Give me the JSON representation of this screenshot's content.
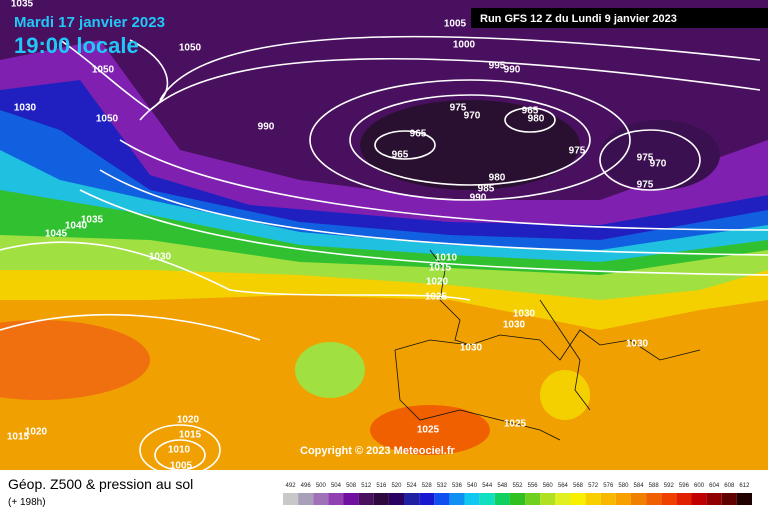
{
  "map": {
    "date": "Mardi 17 janvier 2023",
    "time": "19:00 locale",
    "run": "Run GFS 12 Z du Lundi 9 janvier 2023",
    "copyright": "Copyright © 2023 Meteociel.fr",
    "product": "Géop. Z500 & pression au sol",
    "lead_time": "(+ 198h)",
    "isobar_labels": [
      "1035",
      "1050",
      "1050",
      "1030",
      "1050",
      "1005",
      "1000",
      "995",
      "990",
      "990",
      "975",
      "970",
      "965",
      "980",
      "965",
      "965",
      "975",
      "975",
      "970",
      "975",
      "980",
      "985",
      "990",
      "1035",
      "1040",
      "1045",
      "1030",
      "1010",
      "1015",
      "1020",
      "1025",
      "1030",
      "1030",
      "1030",
      "1030",
      "1025",
      "1025",
      "1020",
      "1015",
      "1010",
      "1005",
      "1020",
      "1015"
    ],
    "legend": {
      "values": [
        492,
        496,
        500,
        504,
        508,
        512,
        516,
        520,
        524,
        528,
        532,
        536,
        540,
        544,
        548,
        552,
        556,
        560,
        564,
        568,
        572,
        576,
        580,
        584,
        588,
        592,
        596,
        600,
        604,
        608,
        612
      ],
      "colors": [
        "#c8c8c8",
        "#a8a0b8",
        "#a070b8",
        "#9040b0",
        "#7010a0",
        "#4a1060",
        "#300840",
        "#2a0060",
        "#2020a0",
        "#1818d0",
        "#1050f0",
        "#1090f0",
        "#10c8f0",
        "#10e0c0",
        "#10d060",
        "#30c020",
        "#70d020",
        "#b0e020",
        "#e0f020",
        "#f8f000",
        "#f8d000",
        "#f8b800",
        "#f8a000",
        "#f08000",
        "#f06000",
        "#f04000",
        "#e02000",
        "#c00000",
        "#900000",
        "#600000",
        "#200000"
      ]
    }
  }
}
